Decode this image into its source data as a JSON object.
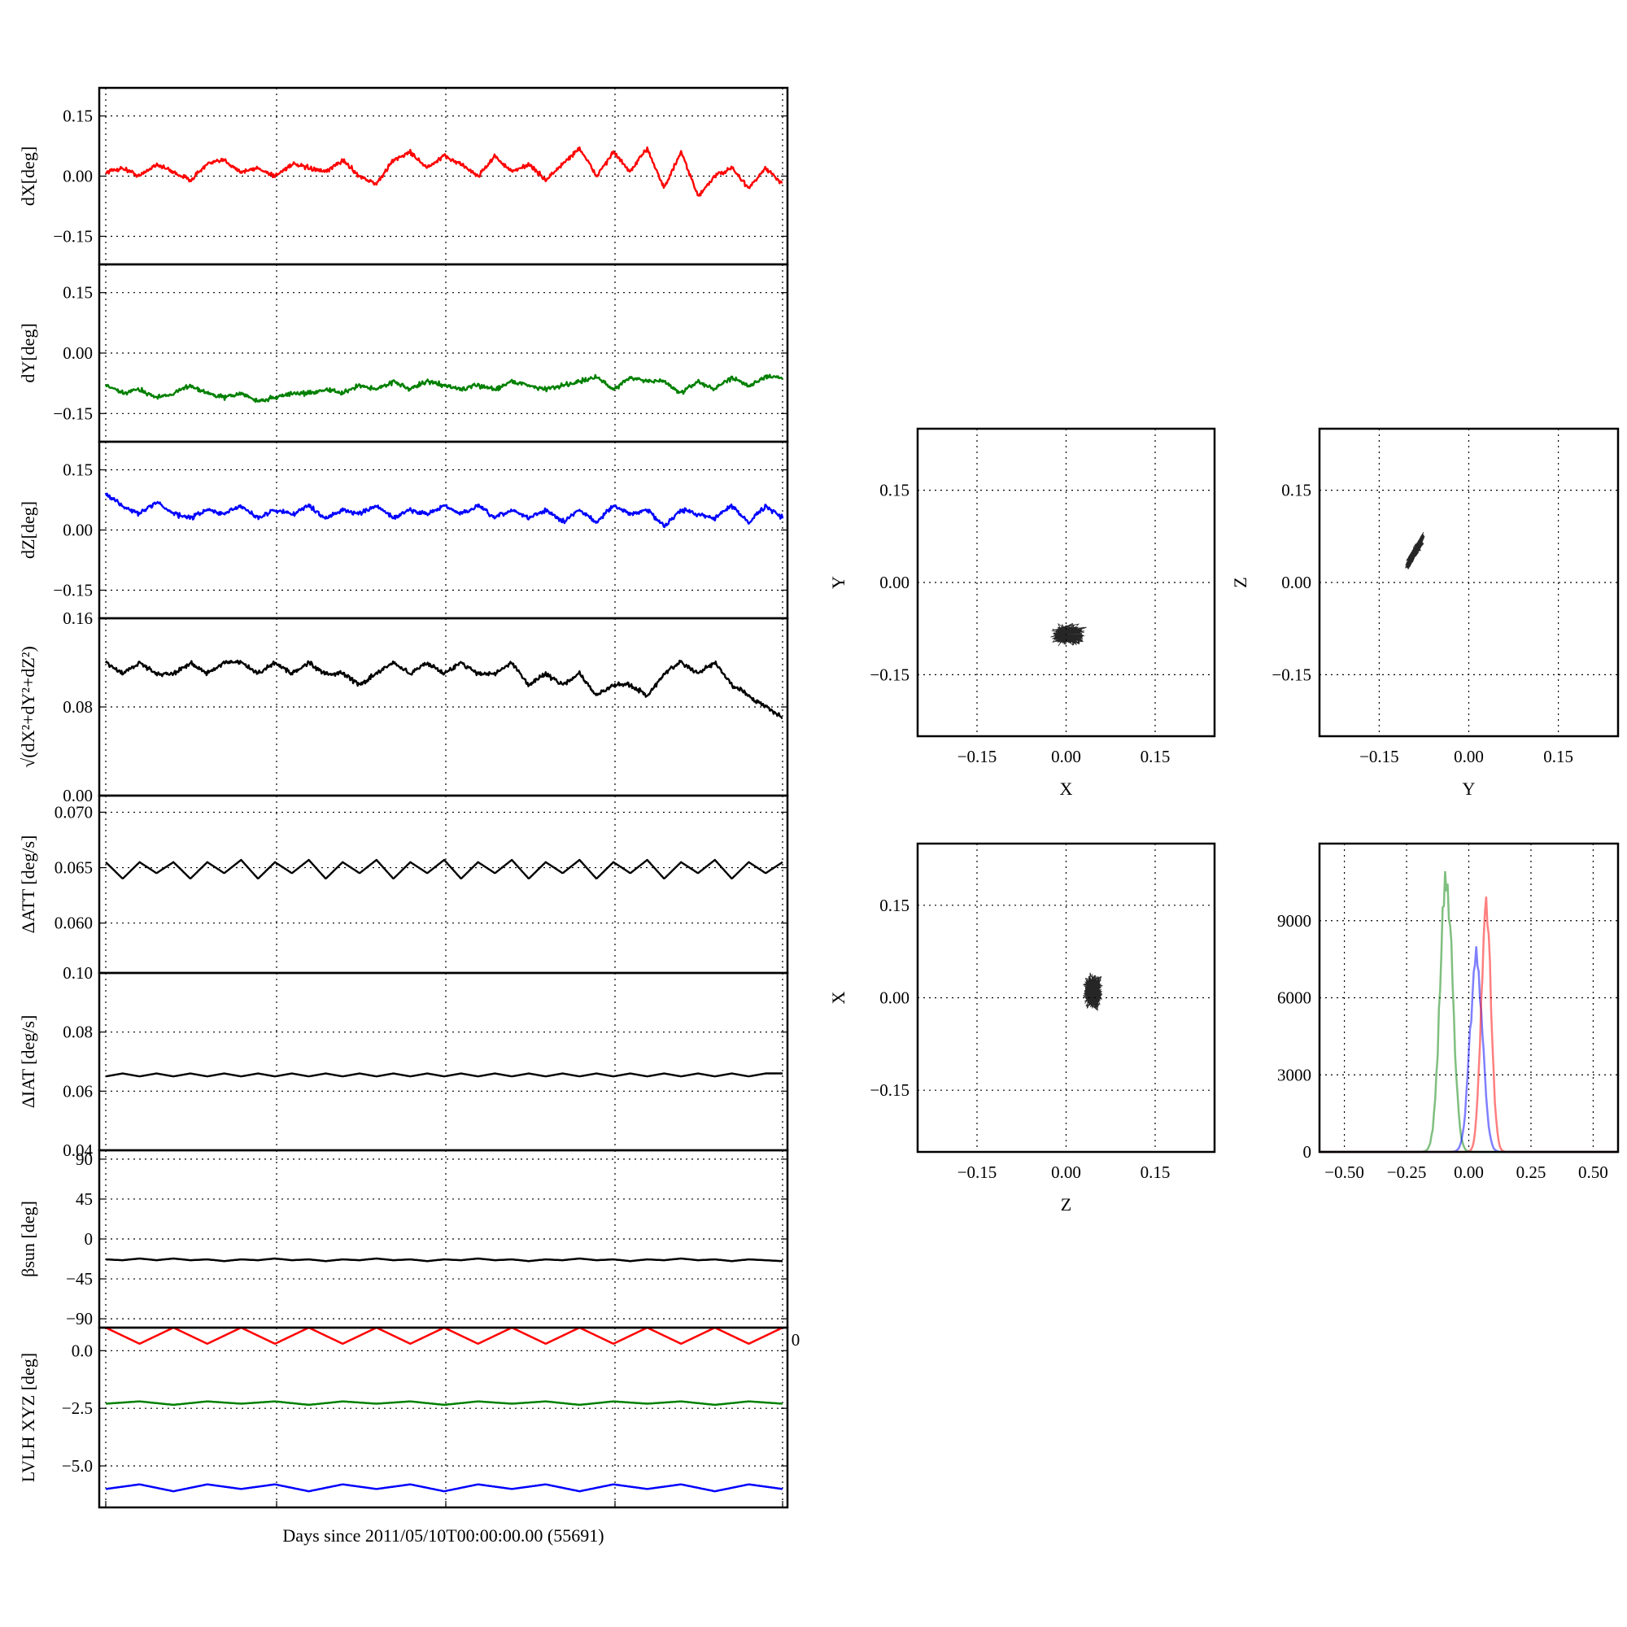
{
  "figure": {
    "xlabel": "Days since 2011/05/10T00:00:00.00 (55691)"
  },
  "chart_data": [
    {
      "type": "line",
      "ylabel": "dX[deg]",
      "ylim": [
        -0.22,
        0.22
      ],
      "yticks": [
        -0.15,
        0.0,
        0.15
      ],
      "ytick_labels": [
        "−0.15",
        "0.00",
        "0.15"
      ],
      "xlim": [
        0,
        4
      ],
      "series": [
        {
          "color": "#ff0000",
          "values": [
            0.01,
            0.02,
            0.0,
            0.03,
            0.01,
            -0.01,
            0.03,
            0.04,
            0.01,
            0.02,
            0.0,
            0.03,
            0.02,
            0.01,
            0.04,
            0.0,
            -0.02,
            0.04,
            0.06,
            0.02,
            0.05,
            0.03,
            0.0,
            0.05,
            0.01,
            0.03,
            -0.01,
            0.03,
            0.07,
            0.0,
            0.06,
            0.01,
            0.07,
            -0.03,
            0.06,
            -0.05,
            0.0,
            0.02,
            -0.03,
            0.02,
            -0.02
          ]
        }
      ]
    },
    {
      "type": "line",
      "ylabel": "dY[deg]",
      "ylim": [
        -0.22,
        0.22
      ],
      "yticks": [
        -0.15,
        0.0,
        0.15
      ],
      "ytick_labels": [
        "−0.15",
        "0.00",
        "0.15"
      ],
      "xlim": [
        0,
        4
      ],
      "series": [
        {
          "color": "#008000",
          "values": [
            -0.08,
            -0.1,
            -0.09,
            -0.11,
            -0.1,
            -0.08,
            -0.1,
            -0.11,
            -0.1,
            -0.12,
            -0.11,
            -0.1,
            -0.1,
            -0.09,
            -0.1,
            -0.08,
            -0.09,
            -0.07,
            -0.09,
            -0.07,
            -0.08,
            -0.09,
            -0.08,
            -0.09,
            -0.07,
            -0.08,
            -0.09,
            -0.08,
            -0.07,
            -0.06,
            -0.09,
            -0.06,
            -0.07,
            -0.07,
            -0.1,
            -0.07,
            -0.09,
            -0.06,
            -0.08,
            -0.06,
            -0.06
          ]
        }
      ]
    },
    {
      "type": "line",
      "ylabel": "dZ[deg]",
      "ylim": [
        -0.22,
        0.22
      ],
      "yticks": [
        -0.15,
        0.0,
        0.15
      ],
      "ytick_labels": [
        "−0.15",
        "0.00",
        "0.15"
      ],
      "xlim": [
        0,
        4
      ],
      "series": [
        {
          "color": "#0000ff",
          "values": [
            0.09,
            0.06,
            0.04,
            0.07,
            0.04,
            0.03,
            0.05,
            0.04,
            0.06,
            0.03,
            0.05,
            0.04,
            0.06,
            0.03,
            0.05,
            0.04,
            0.06,
            0.03,
            0.05,
            0.04,
            0.06,
            0.04,
            0.06,
            0.03,
            0.05,
            0.03,
            0.05,
            0.02,
            0.05,
            0.02,
            0.06,
            0.04,
            0.05,
            0.01,
            0.05,
            0.04,
            0.03,
            0.06,
            0.02,
            0.06,
            0.03
          ]
        }
      ]
    },
    {
      "type": "line",
      "ylabel": "√(dX²+dY²+dZ²)",
      "ylim": [
        0,
        0.16
      ],
      "yticks": [
        0.0,
        0.08,
        0.16
      ],
      "ytick_labels": [
        "0.00",
        "0.08",
        "0.16"
      ],
      "xlim": [
        0,
        4
      ],
      "series": [
        {
          "color": "#000000",
          "values": [
            0.12,
            0.11,
            0.12,
            0.11,
            0.11,
            0.12,
            0.11,
            0.12,
            0.12,
            0.11,
            0.12,
            0.11,
            0.12,
            0.11,
            0.11,
            0.1,
            0.11,
            0.12,
            0.11,
            0.12,
            0.11,
            0.12,
            0.11,
            0.11,
            0.12,
            0.1,
            0.11,
            0.1,
            0.11,
            0.09,
            0.1,
            0.1,
            0.09,
            0.11,
            0.12,
            0.11,
            0.12,
            0.1,
            0.09,
            0.08,
            0.07
          ]
        }
      ]
    },
    {
      "type": "line",
      "ylabel": "ΔATT [deg/s]",
      "ylim": [
        0.0555,
        0.0715
      ],
      "yticks": [
        0.06,
        0.065,
        0.07
      ],
      "ytick_labels": [
        "0.060",
        "0.065",
        "0.070"
      ],
      "xlim": [
        0,
        4
      ],
      "series": [
        {
          "color": "#000000",
          "values": [
            0.0655,
            0.064,
            0.0655,
            0.0645,
            0.0655,
            0.064,
            0.0655,
            0.0645,
            0.0657,
            0.064,
            0.0655,
            0.0645,
            0.0657,
            0.064,
            0.0655,
            0.0645,
            0.0657,
            0.064,
            0.0655,
            0.0645,
            0.0657,
            0.064,
            0.0655,
            0.0645,
            0.0657,
            0.064,
            0.0655,
            0.0645,
            0.0657,
            0.064,
            0.0655,
            0.0645,
            0.0657,
            0.064,
            0.0655,
            0.0645,
            0.0657,
            0.064,
            0.0655,
            0.0645,
            0.0655
          ]
        }
      ]
    },
    {
      "type": "line",
      "ylabel": "ΔIAT [deg/s]",
      "ylim": [
        0.04,
        0.1
      ],
      "yticks": [
        0.04,
        0.06,
        0.08,
        0.1
      ],
      "ytick_labels": [
        "0.04",
        "0.06",
        "0.08",
        "0.10"
      ],
      "xlim": [
        0,
        4
      ],
      "series": [
        {
          "color": "#000000",
          "values": [
            0.065,
            0.066,
            0.065,
            0.066,
            0.065,
            0.066,
            0.065,
            0.066,
            0.065,
            0.066,
            0.065,
            0.066,
            0.065,
            0.066,
            0.065,
            0.066,
            0.065,
            0.066,
            0.065,
            0.066,
            0.065,
            0.066,
            0.065,
            0.066,
            0.065,
            0.066,
            0.065,
            0.066,
            0.065,
            0.066,
            0.065,
            0.066,
            0.065,
            0.066,
            0.065,
            0.066,
            0.065,
            0.066,
            0.065,
            0.066,
            0.066
          ]
        }
      ]
    },
    {
      "type": "line",
      "ylabel": "βsun [deg]",
      "ylim": [
        -100,
        100
      ],
      "yticks": [
        -90,
        -45,
        0,
        45,
        90
      ],
      "ytick_labels": [
        "−90",
        "−45",
        "0",
        "45",
        "90"
      ],
      "xlim": [
        0,
        4
      ],
      "series": [
        {
          "color": "#000000",
          "values": [
            -23,
            -24,
            -22,
            -24,
            -22,
            -24,
            -23,
            -25,
            -23,
            -24,
            -22,
            -24,
            -23,
            -25,
            -23,
            -24,
            -22,
            -24,
            -23,
            -25,
            -23,
            -24,
            -22,
            -24,
            -23,
            -25,
            -23,
            -24,
            -22,
            -24,
            -23,
            -25,
            -23,
            -24,
            -22,
            -24,
            -23,
            -25,
            -23,
            -24,
            -25
          ]
        }
      ]
    },
    {
      "type": "line",
      "ylabel": "LVLH XYZ [deg]",
      "ylim": [
        -6.8,
        1.0
      ],
      "yticks": [
        -5.0,
        -2.5,
        0.0
      ],
      "ytick_labels": [
        "−5.0",
        "−2.5",
        "0.0"
      ],
      "xlim": [
        0,
        4
      ],
      "xticks": [
        0,
        1,
        2,
        3,
        4
      ],
      "xtick_labels": [
        "0",
        "",
        "",
        "",
        ""
      ],
      "series": [
        {
          "color": "#ff0000",
          "values": [
            1.0,
            0.3,
            1.0,
            0.3,
            1.0,
            0.3,
            1.0,
            0.3,
            1.0,
            0.3,
            1.0,
            0.3,
            1.0,
            0.3,
            1.0,
            0.3,
            1.0,
            0.3,
            1.0,
            0.3,
            1.0
          ]
        },
        {
          "color": "#008000",
          "values": [
            -2.3,
            -2.2,
            -2.35,
            -2.2,
            -2.3,
            -2.2,
            -2.35,
            -2.2,
            -2.3,
            -2.2,
            -2.35,
            -2.2,
            -2.3,
            -2.2,
            -2.35,
            -2.2,
            -2.3,
            -2.2,
            -2.35,
            -2.2,
            -2.3
          ]
        },
        {
          "color": "#0000ff",
          "values": [
            -6.0,
            -5.8,
            -6.1,
            -5.8,
            -6.0,
            -5.8,
            -6.1,
            -5.8,
            -6.0,
            -5.8,
            -6.1,
            -5.8,
            -6.0,
            -5.8,
            -6.1,
            -5.8,
            -6.0,
            -5.8,
            -6.1,
            -5.8,
            -6.0
          ]
        }
      ]
    },
    {
      "type": "scatter",
      "xlabel": "X",
      "ylabel": "Y",
      "xlim": [
        -0.25,
        0.25
      ],
      "ylim": [
        -0.25,
        0.25
      ],
      "xticks": [
        -0.15,
        0.0,
        0.15
      ],
      "yticks": [
        -0.15,
        0.0,
        0.15
      ],
      "xtick_labels": [
        "−0.15",
        "0.00",
        "0.15"
      ],
      "ytick_labels": [
        "−0.15",
        "0.00",
        "0.15"
      ],
      "center": [
        0.005,
        -0.085
      ],
      "spread": [
        0.035,
        0.02
      ]
    },
    {
      "type": "scatter",
      "xlabel": "Y",
      "ylabel": "Z",
      "xlim": [
        -0.25,
        0.25
      ],
      "ylim": [
        -0.25,
        0.25
      ],
      "xticks": [
        -0.15,
        0.0,
        0.15
      ],
      "yticks": [
        -0.15,
        0.0,
        0.15
      ],
      "xtick_labels": [
        "−0.15",
        "0.00",
        "0.15"
      ],
      "ytick_labels": [
        "−0.15",
        "0.00",
        "0.15"
      ],
      "center": [
        -0.09,
        0.05
      ],
      "spread": [
        0.02,
        0.03
      ]
    },
    {
      "type": "scatter",
      "xlabel": "Z",
      "ylabel": "X",
      "xlim": [
        -0.25,
        0.25
      ],
      "ylim": [
        -0.25,
        0.25
      ],
      "xticks": [
        -0.15,
        0.0,
        0.15
      ],
      "yticks": [
        -0.15,
        0.0,
        0.15
      ],
      "xtick_labels": [
        "−0.15",
        "0.00",
        "0.15"
      ],
      "ytick_labels": [
        "−0.15",
        "0.00",
        "0.15"
      ],
      "center": [
        0.045,
        0.01
      ],
      "spread": [
        0.02,
        0.035
      ]
    },
    {
      "type": "histogram",
      "xlim": [
        -0.6,
        0.6
      ],
      "ylim": [
        0,
        12000
      ],
      "xticks": [
        -0.5,
        -0.25,
        0.0,
        0.25,
        0.5
      ],
      "yticks": [
        0,
        3000,
        6000,
        9000
      ],
      "xtick_labels": [
        "−0.50",
        "−0.25",
        "0.00",
        "0.25",
        "0.50"
      ],
      "ytick_labels": [
        "0",
        "3000",
        "6000",
        "9000"
      ],
      "series": [
        {
          "color": "#008000",
          "center": -0.09,
          "width": 0.025,
          "peak": 11500
        },
        {
          "color": "#0000ff",
          "center": 0.03,
          "width": 0.025,
          "peak": 8200
        },
        {
          "color": "#ff0000",
          "center": 0.07,
          "width": 0.02,
          "peak": 10000
        }
      ]
    }
  ]
}
